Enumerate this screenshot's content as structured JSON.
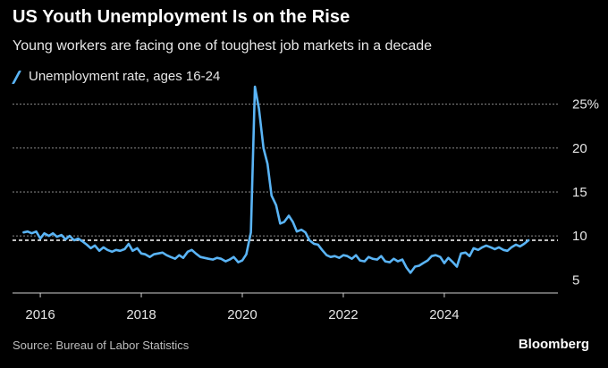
{
  "header": {
    "title": "US Youth Unemployment Is on the Rise",
    "subtitle": "Young workers are facing one of toughest job markets in a decade"
  },
  "legend": {
    "label": "Unemployment rate, ages 16-24"
  },
  "footer": {
    "source": "Source: Bureau of Labor Statistics",
    "brand": "Bloomberg"
  },
  "colors": {
    "background": "#000000",
    "series": "#5ab4f5",
    "grid": "#8c8c8c",
    "reference_line": "#ffffff",
    "text": "#e6e6e6"
  },
  "chart_data": {
    "type": "line",
    "title": "US Youth Unemployment Is on the Rise",
    "subtitle": "Young workers are facing one of toughest job markets in a decade",
    "xlabel": "",
    "ylabel": "",
    "x_ticks": [
      2016,
      2018,
      2020,
      2022,
      2024
    ],
    "y_ticks": [
      5,
      10,
      15,
      20,
      25
    ],
    "y_tick_labels": [
      "5",
      "10",
      "15",
      "20",
      "25%"
    ],
    "ylim": [
      3.5,
      27
    ],
    "xlim": [
      2015.45,
      2026.25
    ],
    "grid": true,
    "legend_position": "top-left",
    "reference_line": {
      "y": 9.5,
      "style": "dashed"
    },
    "series": [
      {
        "name": "Unemployment rate, ages 16-24",
        "x": [
          2015.67,
          2015.75,
          2015.83,
          2015.92,
          2016.0,
          2016.08,
          2016.17,
          2016.25,
          2016.33,
          2016.42,
          2016.5,
          2016.58,
          2016.67,
          2016.75,
          2016.83,
          2016.92,
          2017.0,
          2017.08,
          2017.17,
          2017.25,
          2017.33,
          2017.42,
          2017.5,
          2017.58,
          2017.67,
          2017.75,
          2017.83,
          2017.92,
          2018.0,
          2018.08,
          2018.17,
          2018.25,
          2018.33,
          2018.42,
          2018.5,
          2018.58,
          2018.67,
          2018.75,
          2018.83,
          2018.92,
          2019.0,
          2019.08,
          2019.17,
          2019.25,
          2019.33,
          2019.42,
          2019.5,
          2019.58,
          2019.67,
          2019.75,
          2019.83,
          2019.92,
          2020.0,
          2020.08,
          2020.17,
          2020.25,
          2020.33,
          2020.42,
          2020.5,
          2020.58,
          2020.67,
          2020.75,
          2020.83,
          2020.92,
          2021.0,
          2021.08,
          2021.17,
          2021.25,
          2021.33,
          2021.42,
          2021.5,
          2021.58,
          2021.67,
          2021.75,
          2021.83,
          2021.92,
          2022.0,
          2022.08,
          2022.17,
          2022.25,
          2022.33,
          2022.42,
          2022.5,
          2022.58,
          2022.67,
          2022.75,
          2022.83,
          2022.92,
          2023.0,
          2023.08,
          2023.17,
          2023.25,
          2023.33,
          2023.42,
          2023.5,
          2023.58,
          2023.67,
          2023.75,
          2023.83,
          2023.92,
          2024.0,
          2024.08,
          2024.17,
          2024.25,
          2024.33,
          2024.42,
          2024.5,
          2024.58,
          2024.67,
          2024.75,
          2024.83,
          2024.92,
          2025.0,
          2025.08,
          2025.17,
          2025.25,
          2025.33,
          2025.42,
          2025.5,
          2025.58,
          2025.67
        ],
        "values": [
          10.4,
          10.5,
          10.3,
          10.5,
          9.7,
          10.3,
          10.0,
          10.3,
          9.9,
          10.1,
          9.6,
          10.0,
          9.5,
          9.7,
          9.4,
          9.0,
          8.6,
          8.9,
          8.3,
          8.7,
          8.4,
          8.2,
          8.4,
          8.3,
          8.5,
          9.1,
          8.3,
          8.6,
          8.0,
          7.9,
          7.6,
          7.9,
          8.0,
          8.1,
          7.8,
          7.6,
          7.4,
          7.8,
          7.5,
          8.2,
          8.4,
          8.0,
          7.6,
          7.5,
          7.4,
          7.3,
          7.5,
          7.4,
          7.1,
          7.3,
          7.6,
          7.0,
          7.2,
          7.9,
          10.4,
          27.0,
          24.5,
          20.0,
          18.2,
          14.6,
          13.5,
          11.4,
          11.6,
          12.3,
          11.6,
          10.5,
          10.7,
          10.4,
          9.5,
          9.1,
          9.0,
          8.4,
          7.8,
          7.6,
          7.7,
          7.5,
          7.8,
          7.7,
          7.4,
          7.8,
          7.2,
          7.1,
          7.6,
          7.4,
          7.3,
          7.7,
          7.1,
          7.0,
          7.4,
          7.1,
          7.3,
          6.4,
          5.8,
          6.5,
          6.6,
          6.9,
          7.2,
          7.7,
          7.8,
          7.6,
          6.9,
          7.5,
          7.0,
          6.5,
          8.0,
          8.1,
          7.7,
          8.6,
          8.4,
          8.7,
          8.9,
          8.7,
          8.5,
          8.7,
          8.4,
          8.3,
          8.7,
          9.0,
          8.8,
          9.1,
          9.5
        ]
      }
    ]
  }
}
